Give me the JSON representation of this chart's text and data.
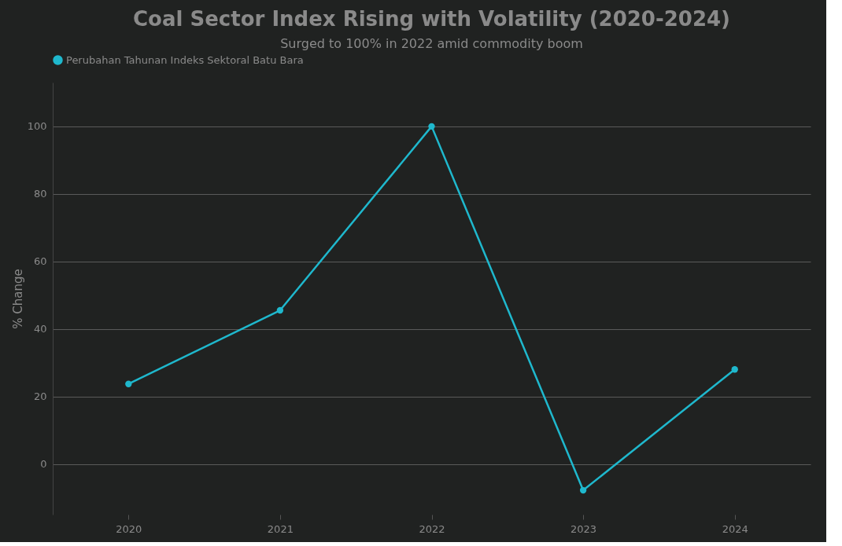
{
  "chart_data": {
    "type": "line",
    "title": "Coal Sector Index Rising with Volatility (2020-2024)",
    "subtitle": "Surged to 100% in 2022 amid commodity boom",
    "ylabel": "% Change",
    "categories": [
      "2020",
      "2021",
      "2022",
      "2023",
      "2024"
    ],
    "series": [
      {
        "name": "Perubahan Tahunan Indeks Sektoral Batu Bara",
        "color": "#1fb8cd",
        "values": [
          23.7,
          45.5,
          100,
          -7.8,
          28.0
        ]
      }
    ],
    "ylim": [
      -15,
      113
    ],
    "yticks": [
      0,
      20,
      40,
      60,
      80,
      100
    ],
    "grid": "y",
    "legend": "top",
    "marker": "circle",
    "line_style": "solid"
  }
}
